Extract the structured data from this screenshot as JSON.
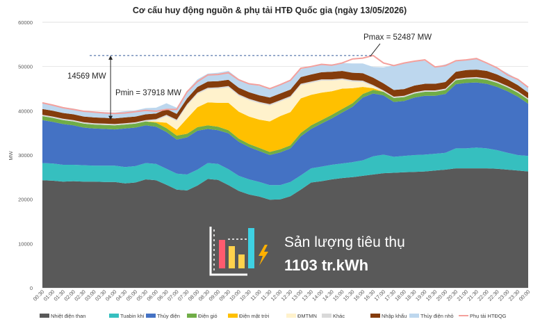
{
  "chart_data": {
    "type": "area",
    "title": "Cơ cấu huy động nguồn & phụ tải HTĐ Quốc gia (ngày 13/05/2026)",
    "ylabel": "MW",
    "xlabel": "",
    "ylim": [
      0,
      60000
    ],
    "yticks": [
      "0",
      "10000",
      "20000",
      "30000",
      "40000",
      "50000",
      "60000"
    ],
    "grid": true,
    "legend_position": "bottom",
    "x": [
      "00:30",
      "01:00",
      "01:30",
      "02:00",
      "02:30",
      "03:00",
      "03:30",
      "04:00",
      "04:30",
      "05:00",
      "05:30",
      "06:00",
      "06:30",
      "07:00",
      "07:30",
      "08:00",
      "08:30",
      "09:00",
      "09:30",
      "10:00",
      "10:30",
      "11:00",
      "11:30",
      "12:00",
      "12:30",
      "13:00",
      "13:30",
      "14:00",
      "14:30",
      "15:00",
      "15:30",
      "16:00",
      "16:30",
      "17:00",
      "17:30",
      "18:00",
      "18:30",
      "19:00",
      "19:30",
      "20:00",
      "20:30",
      "21:00",
      "21:30",
      "22:00",
      "22:30",
      "23:00",
      "23:30",
      "00:00"
    ],
    "series": [
      {
        "name": "Nhiệt điện than",
        "color": "#595959",
        "values": [
          24300,
          24200,
          24000,
          24100,
          24000,
          24000,
          23900,
          23900,
          23600,
          23800,
          24500,
          24300,
          23300,
          22200,
          22000,
          23100,
          24600,
          24400,
          23200,
          21900,
          21100,
          20600,
          19900,
          20000,
          20700,
          22200,
          23800,
          24100,
          24500,
          24800,
          25000,
          25300,
          25600,
          25900,
          26000,
          26100,
          26200,
          26300,
          26500,
          26700,
          27000,
          27000,
          27000,
          27000,
          26900,
          26700,
          26500,
          26300
        ]
      },
      {
        "name": "Tuabin khí",
        "color": "#36bfbf",
        "values": [
          3900,
          3900,
          3800,
          3700,
          3700,
          3600,
          3700,
          3700,
          3700,
          3700,
          3700,
          3700,
          3600,
          3600,
          3600,
          3600,
          3600,
          3600,
          3600,
          3400,
          3400,
          3300,
          3300,
          3200,
          3200,
          3200,
          3200,
          3300,
          3300,
          3300,
          3400,
          3500,
          4100,
          4200,
          3600,
          3700,
          3800,
          3800,
          3800,
          3800,
          4500,
          4500,
          4700,
          4500,
          4200,
          3800,
          3500,
          3500
        ]
      },
      {
        "name": "Thủy điện",
        "color": "#4472c4",
        "values": [
          9700,
          9400,
          9200,
          8900,
          8500,
          8400,
          8300,
          8200,
          8700,
          8700,
          8500,
          8400,
          8300,
          7700,
          8400,
          8800,
          7700,
          7600,
          8100,
          7700,
          7300,
          7000,
          6800,
          7400,
          7600,
          8800,
          8900,
          9700,
          10500,
          11500,
          12500,
          14200,
          14200,
          13400,
          12400,
          12400,
          13000,
          13300,
          13100,
          13300,
          14500,
          14800,
          14700,
          14600,
          14300,
          13900,
          13200,
          11800
        ]
      },
      {
        "name": "Điện gió",
        "color": "#70ad47",
        "values": [
          900,
          900,
          900,
          900,
          900,
          900,
          900,
          900,
          900,
          900,
          900,
          900,
          900,
          900,
          800,
          800,
          800,
          800,
          700,
          700,
          700,
          700,
          700,
          700,
          700,
          800,
          800,
          800,
          800,
          800,
          800,
          800,
          800,
          800,
          900,
          900,
          900,
          900,
          900,
          900,
          900,
          900,
          900,
          900,
          900,
          900,
          900,
          900
        ]
      },
      {
        "name": "Điện mặt trời",
        "color": "#ffc000",
        "values": [
          0,
          0,
          0,
          0,
          0,
          0,
          0,
          0,
          0,
          0,
          0,
          200,
          1200,
          1300,
          3500,
          4500,
          5200,
          5400,
          6200,
          6100,
          6200,
          6400,
          6900,
          7500,
          7500,
          7800,
          6900,
          6200,
          5300,
          4600,
          3400,
          1600,
          400,
          0,
          0,
          0,
          0,
          0,
          0,
          0,
          0,
          0,
          0,
          0,
          0,
          0,
          0,
          0
        ]
      },
      {
        "name": "ĐMTMN",
        "color": "#fff2cc",
        "values": [
          0,
          0,
          0,
          0,
          0,
          0,
          0,
          0,
          0,
          0,
          0,
          300,
          1500,
          2000,
          2900,
          3000,
          3000,
          3200,
          3500,
          3600,
          3700,
          3700,
          3600,
          3300,
          3300,
          3000,
          2700,
          2700,
          2400,
          2000,
          1500,
          1100,
          400,
          0,
          0,
          0,
          0,
          0,
          0,
          0,
          0,
          0,
          0,
          0,
          0,
          0,
          0,
          0
        ]
      },
      {
        "name": "Khác",
        "color": "#d9d9d9",
        "values": [
          300,
          300,
          300,
          300,
          300,
          300,
          300,
          300,
          300,
          300,
          300,
          300,
          300,
          300,
          300,
          300,
          300,
          300,
          300,
          300,
          300,
          300,
          300,
          300,
          300,
          300,
          300,
          300,
          300,
          300,
          300,
          300,
          300,
          300,
          300,
          300,
          300,
          300,
          300,
          300,
          300,
          300,
          300,
          300,
          300,
          300,
          300,
          300
        ]
      },
      {
        "name": "Nhập khẩu",
        "color": "#843c0c",
        "values": [
          1300,
          1300,
          1300,
          1300,
          1300,
          1300,
          1300,
          1300,
          1300,
          1300,
          1300,
          1300,
          1300,
          1300,
          1300,
          1300,
          1400,
          1400,
          1400,
          1500,
          1500,
          1500,
          1500,
          1500,
          1500,
          1500,
          1600,
          1600,
          1700,
          1700,
          1700,
          1700,
          1700,
          1600,
          1500,
          1500,
          1500,
          1500,
          1500,
          1500,
          1600,
          1700,
          1700,
          1700,
          1600,
          1500,
          1400,
          1300
        ]
      },
      {
        "name": "Thủy điện nhỏ",
        "color": "#bdd7ee",
        "values": [
          1300,
          1300,
          1300,
          1300,
          1300,
          1300,
          1300,
          1300,
          1400,
          1400,
          1400,
          1300,
          1300,
          1400,
          1700,
          1700,
          1800,
          1900,
          2000,
          2000,
          2000,
          2100,
          2100,
          2000,
          2000,
          1800,
          1800,
          1800,
          1700,
          1800,
          2100,
          2200,
          2400,
          3600,
          5600,
          6000,
          5500,
          5200,
          3700,
          4000,
          2400,
          2300,
          2400,
          1800,
          1500,
          1400,
          1300,
          1200
        ]
      }
    ],
    "load_series": {
      "name": "Phụ tải HTĐQG",
      "color": "#f4a09c",
      "values": [
        41800,
        41300,
        40700,
        40300,
        39900,
        39700,
        39500,
        39400,
        39500,
        39800,
        40100,
        39900,
        40300,
        40300,
        44300,
        46600,
        48100,
        48200,
        48600,
        47000,
        46100,
        45800,
        45000,
        45900,
        46900,
        49600,
        50000,
        50500,
        50300,
        50800,
        51700,
        51900,
        52487,
        50800,
        50200,
        50800,
        51200,
        51500,
        49900,
        50200,
        51300,
        51500,
        51800,
        50800,
        49700,
        48100,
        47100,
        45300
      ]
    }
  },
  "annotations": {
    "pmax": "Pmax = 52487 MW",
    "pmin": "Pmin = 37918 MW",
    "diff": "14569 MW",
    "pmax_value": 52487,
    "pmin_value": 37918,
    "pmin_time": "04:00",
    "pmax_time": "16:30"
  },
  "infobox": {
    "caption": "Sản lượng tiêu thụ",
    "value": "1103 tr.kWh",
    "bar_colors": [
      "#ff5b6e",
      "#ffd24c",
      "#ffd24c",
      "#3ed1e3"
    ],
    "bolt_color": "#ffb000"
  }
}
